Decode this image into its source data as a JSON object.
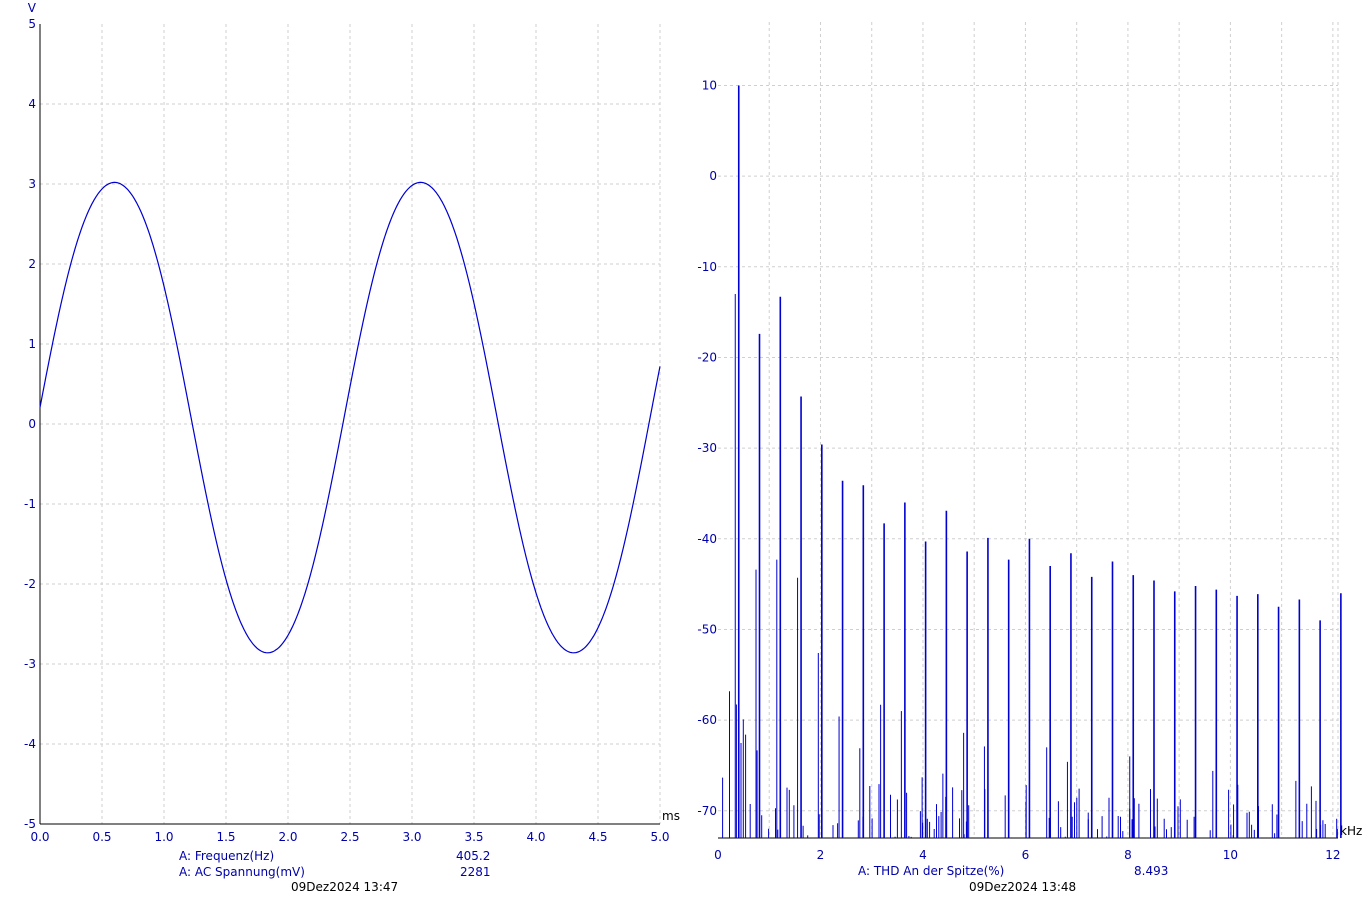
{
  "colors": {
    "trace": "#0000d0",
    "text": "#0000aa",
    "grid": "#cfcfcf",
    "axis": "#000000",
    "date": "#000000"
  },
  "chart_data": [
    {
      "type": "line",
      "ylabel": "V",
      "xlabel": "ms",
      "xlim": [
        0,
        5
      ],
      "ylim": [
        -5,
        5
      ],
      "grid": true,
      "x_ticks": [
        "0.0",
        "0.5",
        "1.0",
        "1.5",
        "2.0",
        "2.5",
        "3.0",
        "3.5",
        "4.0",
        "4.5",
        "5.0"
      ],
      "y_ticks": [
        "5",
        "4",
        "3",
        "2",
        "1",
        "0",
        "-1",
        "-2",
        "-3",
        "-4",
        "-5"
      ],
      "signal": {
        "frequency_hz": 405.2,
        "positive_peak": 3.08,
        "negative_peak": -2.92,
        "initial_value": 0.2
      },
      "readouts": [
        {
          "label": "A: Frequenz(Hz)",
          "value": "405.2"
        },
        {
          "label": "A: AC Spannung(mV)",
          "value": "2281"
        }
      ],
      "timestamp": "09Dez2024  13:47"
    },
    {
      "type": "bar",
      "xlabel": "kHz",
      "xlim": [
        0,
        12.1
      ],
      "ylim": [
        -73,
        17
      ],
      "grid": true,
      "x_ticks": [
        "0",
        "2",
        "4",
        "6",
        "8",
        "10",
        "12"
      ],
      "y_ticks": [
        "10",
        "0",
        "-10",
        "-20",
        "-30",
        "-40",
        "-50",
        "-60",
        "-70"
      ],
      "harmonics": [
        {
          "n": 1,
          "khz": 0.405,
          "db": 10.0
        },
        {
          "n": 2,
          "khz": 0.81,
          "db": -17.4
        },
        {
          "n": 3,
          "khz": 1.216,
          "db": -13.3
        },
        {
          "n": 4,
          "khz": 1.621,
          "db": -24.3
        },
        {
          "n": 5,
          "khz": 2.026,
          "db": -29.6
        },
        {
          "n": 6,
          "khz": 2.431,
          "db": -33.6
        },
        {
          "n": 7,
          "khz": 2.836,
          "db": -34.1
        },
        {
          "n": 8,
          "khz": 3.242,
          "db": -38.3
        },
        {
          "n": 9,
          "khz": 3.647,
          "db": -36.0
        },
        {
          "n": 10,
          "khz": 4.052,
          "db": -40.3
        },
        {
          "n": 11,
          "khz": 4.457,
          "db": -36.9
        },
        {
          "n": 12,
          "khz": 4.862,
          "db": -41.4
        },
        {
          "n": 13,
          "khz": 5.268,
          "db": -39.9
        },
        {
          "n": 14,
          "khz": 5.673,
          "db": -42.3
        },
        {
          "n": 15,
          "khz": 6.078,
          "db": -40.0
        },
        {
          "n": 16,
          "khz": 6.483,
          "db": -43.0
        },
        {
          "n": 17,
          "khz": 6.888,
          "db": -41.6
        },
        {
          "n": 18,
          "khz": 7.294,
          "db": -44.2
        },
        {
          "n": 19,
          "khz": 7.699,
          "db": -42.5
        },
        {
          "n": 20,
          "khz": 8.104,
          "db": -44.0
        },
        {
          "n": 21,
          "khz": 8.509,
          "db": -44.6
        },
        {
          "n": 22,
          "khz": 8.914,
          "db": -45.8
        },
        {
          "n": 23,
          "khz": 9.32,
          "db": -45.2
        },
        {
          "n": 24,
          "khz": 9.725,
          "db": -45.6
        },
        {
          "n": 25,
          "khz": 10.13,
          "db": -46.3
        },
        {
          "n": 26,
          "khz": 10.535,
          "db": -46.1
        },
        {
          "n": 27,
          "khz": 10.94,
          "db": -47.5
        },
        {
          "n": 28,
          "khz": 11.346,
          "db": -46.7
        },
        {
          "n": 29,
          "khz": 11.751,
          "db": -49.0
        },
        {
          "n": 30,
          "khz": 12.156,
          "db": -46.0
        }
      ],
      "readouts": [
        {
          "label": "A: THD An der Spitze(%)",
          "value": "8.493"
        }
      ],
      "timestamp": "09Dez2024  13:48"
    }
  ]
}
